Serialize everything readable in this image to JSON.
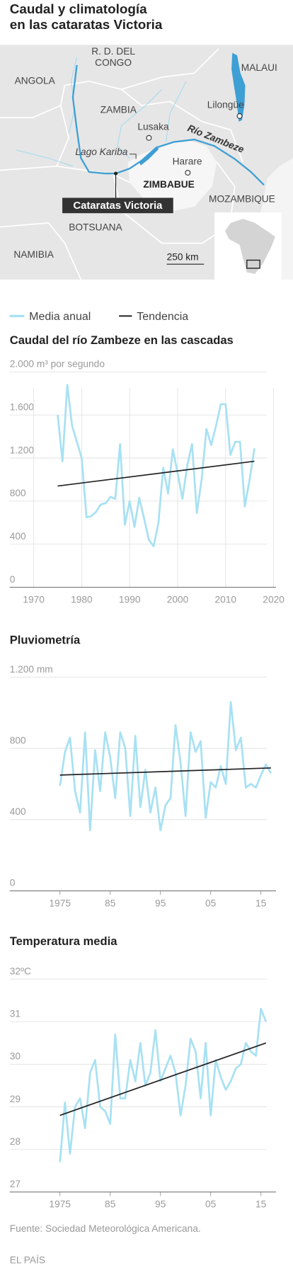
{
  "title": [
    "Caudal y climatología",
    "en las cataratas Victoria"
  ],
  "map": {
    "labels": [
      "ANGOLA",
      [
        "R. D. DEL",
        "CONGO"
      ],
      "MALAUI",
      "ZAMBIA",
      "Lilongüe",
      "Lusaka",
      "Río Zambeze",
      "Lago Kariba",
      "Harare",
      "ZIMBABUE",
      "Cataratas Victoria",
      "MOZAMBIQUE",
      "BOTSUANA",
      "NAMIBIA",
      "250 km"
    ]
  },
  "chart_data": [
    {
      "type": "line",
      "title": "Caudal del río Zambeze en las cascadas",
      "xlim": [
        1965,
        2020.5
      ],
      "ylim": [
        0,
        2000
      ],
      "xticks": [
        1970,
        1980,
        1990,
        2000,
        2010,
        2020
      ],
      "yticks": [
        0,
        400,
        800,
        {
          "value": 1200,
          "label": "1.200"
        },
        {
          "value": 1600,
          "label": "1.600"
        },
        {
          "value": 2000,
          "label": "2.000 m³ por segundo"
        }
      ],
      "grid": true,
      "xgrid": true,
      "series": [
        {
          "name": "Media anual",
          "color": "#a8e1f3",
          "x": [
            1975,
            1976,
            1977,
            1978,
            1979,
            1980,
            1981,
            1982,
            1983,
            1984,
            1985,
            1986,
            1987,
            1988,
            1989,
            1990,
            1991,
            1992,
            1993,
            1994,
            1995,
            1996,
            1997,
            1998,
            1999,
            2000,
            2001,
            2002,
            2003,
            2004,
            2005,
            2006,
            2007,
            2008,
            2009,
            2010,
            2011,
            2012,
            2013,
            2014,
            2015,
            2016
          ],
          "values": [
            1600,
            1170,
            1880,
            1500,
            1350,
            1200,
            650,
            660,
            700,
            770,
            780,
            840,
            820,
            1330,
            580,
            800,
            560,
            830,
            640,
            440,
            380,
            600,
            1110,
            870,
            1280,
            1060,
            820,
            1130,
            1330,
            690,
            1000,
            1470,
            1320,
            1500,
            1700,
            1700,
            1230,
            1350,
            1350,
            750,
            1000,
            1290
          ]
        },
        {
          "name": "Tendencia",
          "color": "#222222",
          "x": [
            1975,
            2016
          ],
          "values": [
            940,
            1170
          ]
        }
      ]
    },
    {
      "type": "line",
      "title": "Pluviometría",
      "xlim": [
        1965,
        2018
      ],
      "ylim": [
        0,
        1200
      ],
      "xticks": [
        1975,
        {
          "value": 1985,
          "label": "85"
        },
        {
          "value": 1995,
          "label": "95"
        },
        {
          "value": 2005,
          "label": "05"
        },
        {
          "value": 2015,
          "label": "15"
        }
      ],
      "yticks": [
        0,
        400,
        800,
        {
          "value": 1200,
          "label": "1.200 mm"
        }
      ],
      "grid": true,
      "xgrid": false,
      "series": [
        {
          "name": "Media anual",
          "color": "#a8e1f3",
          "x": [
            1975,
            1976,
            1977,
            1978,
            1979,
            1980,
            1981,
            1982,
            1983,
            1984,
            1985,
            1986,
            1987,
            1988,
            1989,
            1990,
            1991,
            1992,
            1993,
            1994,
            1995,
            1996,
            1997,
            1998,
            1999,
            2000,
            2001,
            2002,
            2003,
            2004,
            2005,
            2006,
            2007,
            2008,
            2009,
            2010,
            2011,
            2012,
            2013,
            2014,
            2015,
            2016,
            2017
          ],
          "values": [
            590,
            780,
            860,
            560,
            440,
            890,
            340,
            790,
            560,
            890,
            750,
            520,
            890,
            800,
            420,
            870,
            470,
            680,
            440,
            580,
            340,
            480,
            520,
            930,
            720,
            420,
            890,
            780,
            840,
            410,
            610,
            580,
            700,
            600,
            1060,
            790,
            860,
            580,
            600,
            580,
            650,
            710,
            660
          ]
        },
        {
          "name": "Tendencia",
          "color": "#222222",
          "x": [
            1975,
            2017
          ],
          "values": [
            650,
            690
          ]
        }
      ]
    },
    {
      "type": "line",
      "title": "Temperatura media",
      "xlim": [
        1965,
        2018
      ],
      "ylim": [
        27,
        32
      ],
      "xticks": [
        1975,
        {
          "value": 1985,
          "label": "85"
        },
        {
          "value": 1995,
          "label": "95"
        },
        {
          "value": 2005,
          "label": "05"
        },
        {
          "value": 2015,
          "label": "15"
        }
      ],
      "yticks": [
        27,
        28,
        29,
        30,
        31,
        {
          "value": 32,
          "label": "32ºC"
        }
      ],
      "grid": true,
      "xgrid": false,
      "series": [
        {
          "name": "Media anual",
          "color": "#a8e1f3",
          "x": [
            1975,
            1976,
            1977,
            1978,
            1979,
            1980,
            1981,
            1982,
            1983,
            1984,
            1985,
            1986,
            1987,
            1988,
            1989,
            1990,
            1991,
            1992,
            1993,
            1994,
            1995,
            1996,
            1997,
            1998,
            1999,
            2000,
            2001,
            2002,
            2003,
            2004,
            2005,
            2006,
            2007,
            2008,
            2009,
            2010,
            2011,
            2012,
            2013,
            2014,
            2015,
            2016
          ],
          "values": [
            27.7,
            29.1,
            27.9,
            29.0,
            29.2,
            28.5,
            29.8,
            30.1,
            29.0,
            28.9,
            28.6,
            30.7,
            29.2,
            29.2,
            30.1,
            29.6,
            30.5,
            29.5,
            29.8,
            30.8,
            29.6,
            29.9,
            30.2,
            29.8,
            28.8,
            29.5,
            30.6,
            30.3,
            29.2,
            30.5,
            28.8,
            30.1,
            29.7,
            29.4,
            29.6,
            29.9,
            30.0,
            30.5,
            30.3,
            30.2,
            31.3,
            31.0
          ]
        },
        {
          "name": "Tendencia",
          "color": "#222222",
          "x": [
            1975,
            2016
          ],
          "values": [
            28.8,
            30.5
          ]
        }
      ]
    }
  ],
  "source": "Fuente: Sociedad Meteorológica Americana.",
  "publisher": "EL PAÍS"
}
